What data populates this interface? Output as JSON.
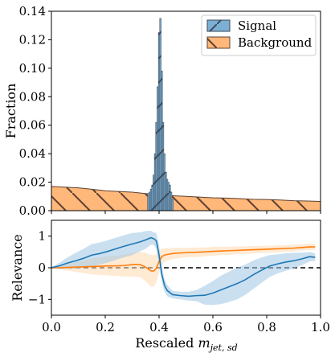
{
  "chart_data": [
    {
      "type": "histogram",
      "panel": "top",
      "ylabel": "Fraction",
      "xlim": [
        0.0,
        1.0
      ],
      "ylim": [
        0.0,
        0.14
      ],
      "yticks": [
        "0.00",
        "0.02",
        "0.04",
        "0.06",
        "0.08",
        "0.10",
        "0.12",
        "0.14"
      ],
      "legend": {
        "placement": "top-right"
      },
      "series": [
        {
          "name": "Signal",
          "color": "#7bafd4",
          "edge": "#3b4a5a",
          "hatch": "/",
          "bin_centers": [
            0.36,
            0.365,
            0.37,
            0.375,
            0.38,
            0.385,
            0.39,
            0.395,
            0.4,
            0.405,
            0.41,
            0.415,
            0.42,
            0.425,
            0.43,
            0.435,
            0.44,
            0.445,
            0.45
          ],
          "values": [
            0.012,
            0.013,
            0.015,
            0.018,
            0.025,
            0.04,
            0.062,
            0.087,
            0.125,
            0.135,
            0.098,
            0.062,
            0.04,
            0.027,
            0.022,
            0.02,
            0.018,
            0.013,
            0.008
          ]
        },
        {
          "name": "Background",
          "color": "#ffb77a",
          "edge": "#5a4030",
          "hatch": "\\",
          "x": [
            0.0,
            0.05,
            0.1,
            0.15,
            0.2,
            0.25,
            0.3,
            0.35,
            0.4,
            0.45,
            0.5,
            0.55,
            0.6,
            0.65,
            0.7,
            0.75,
            0.8,
            0.85,
            0.9,
            0.95,
            1.0
          ],
          "values": [
            0.017,
            0.0165,
            0.016,
            0.015,
            0.014,
            0.0135,
            0.013,
            0.012,
            0.011,
            0.0105,
            0.01,
            0.0095,
            0.009,
            0.0088,
            0.0085,
            0.008,
            0.0078,
            0.0075,
            0.007,
            0.0068,
            0.0065
          ]
        }
      ]
    },
    {
      "type": "line",
      "panel": "bottom",
      "xlabel": "Rescaled m_{jet,sd}",
      "xlabel_parts": {
        "main": "Rescaled ",
        "var": "m",
        "sub": "jet, sd"
      },
      "ylabel": "Relevance",
      "xlim": [
        0.0,
        1.0
      ],
      "ylim": [
        -1.5,
        1.5
      ],
      "xticks": [
        "0.0",
        "0.2",
        "0.4",
        "0.6",
        "0.8",
        "1.0"
      ],
      "yticks": [
        "−1",
        "0",
        "1"
      ],
      "reference_line": {
        "y": 0,
        "style": "dashed"
      },
      "x": [
        0.0,
        0.03,
        0.06,
        0.09,
        0.12,
        0.15,
        0.18,
        0.21,
        0.24,
        0.27,
        0.3,
        0.33,
        0.35,
        0.37,
        0.38,
        0.39,
        0.4,
        0.41,
        0.42,
        0.43,
        0.45,
        0.48,
        0.51,
        0.54,
        0.57,
        0.6,
        0.63,
        0.66,
        0.69,
        0.72,
        0.75,
        0.78,
        0.81,
        0.84,
        0.87,
        0.9,
        0.93,
        0.96,
        0.98
      ],
      "series": [
        {
          "name": "Signal",
          "color": "#1f77b4",
          "band_color": "#9ec7e3",
          "values": [
            0.0,
            0.06,
            0.15,
            0.22,
            0.3,
            0.4,
            0.45,
            0.52,
            0.6,
            0.68,
            0.75,
            0.82,
            0.88,
            0.95,
            0.92,
            0.85,
            0.4,
            -0.2,
            -0.55,
            -0.72,
            -0.85,
            -0.88,
            -0.9,
            -0.88,
            -0.87,
            -0.8,
            -0.7,
            -0.6,
            -0.5,
            -0.38,
            -0.22,
            -0.08,
            0.05,
            0.12,
            0.18,
            0.22,
            0.28,
            0.35,
            0.33
          ],
          "band": [
            0.02,
            0.1,
            0.18,
            0.25,
            0.3,
            0.35,
            0.35,
            0.35,
            0.35,
            0.35,
            0.35,
            0.3,
            0.28,
            0.22,
            0.2,
            0.25,
            0.3,
            0.25,
            0.2,
            0.18,
            0.12,
            0.12,
            0.14,
            0.18,
            0.3,
            0.38,
            0.45,
            0.48,
            0.5,
            0.48,
            0.45,
            0.4,
            0.35,
            0.3,
            0.28,
            0.25,
            0.2,
            0.15,
            0.12
          ]
        },
        {
          "name": "Background",
          "color": "#ff7f0e",
          "band_color": "#ffd8b0",
          "values": [
            0.0,
            0.0,
            0.01,
            0.02,
            0.03,
            0.04,
            0.05,
            0.06,
            0.06,
            0.07,
            0.1,
            0.1,
            0.02,
            -0.1,
            -0.1,
            -0.02,
            0.2,
            0.35,
            0.4,
            0.42,
            0.45,
            0.47,
            0.48,
            0.49,
            0.5,
            0.52,
            0.53,
            0.54,
            0.55,
            0.56,
            0.57,
            0.58,
            0.59,
            0.6,
            0.61,
            0.62,
            0.64,
            0.66,
            0.66
          ],
          "band": [
            0.02,
            0.05,
            0.1,
            0.15,
            0.2,
            0.25,
            0.28,
            0.3,
            0.32,
            0.35,
            0.38,
            0.4,
            0.45,
            0.5,
            0.5,
            0.45,
            0.35,
            0.25,
            0.22,
            0.2,
            0.18,
            0.16,
            0.15,
            0.15,
            0.14,
            0.14,
            0.13,
            0.13,
            0.12,
            0.12,
            0.12,
            0.11,
            0.11,
            0.11,
            0.1,
            0.1,
            0.1,
            0.1,
            0.1
          ]
        }
      ]
    }
  ]
}
